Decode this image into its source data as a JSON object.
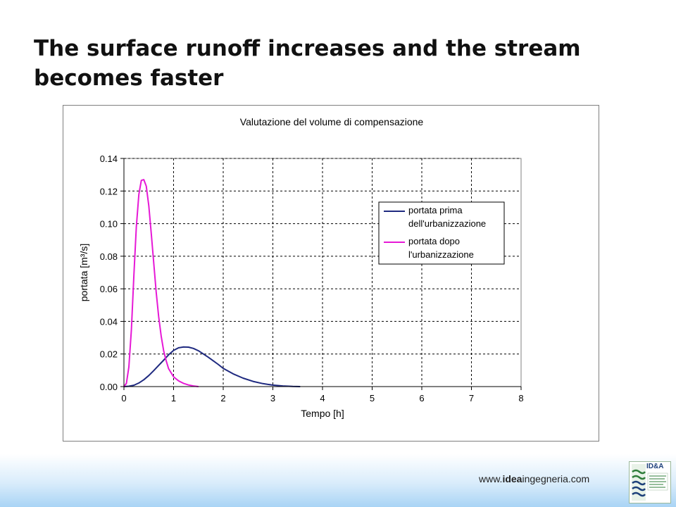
{
  "slide": {
    "title": "The surface runoff  increases and the stream becomes faster"
  },
  "footer": {
    "url_prefix": "www.",
    "url_bold": "idea",
    "url_suffix": "ingegneria.com",
    "logo_text": "ID&A"
  },
  "colors": {
    "before": "#1f2a80",
    "after": "#e619d6",
    "grid": "#000000"
  },
  "chart_data": {
    "type": "line",
    "title": "Valutazione del volume di compensazione",
    "xlabel": "Tempo [h]",
    "ylabel": "portata [m³/s]",
    "xlim": [
      0,
      8
    ],
    "ylim": [
      0,
      0.14
    ],
    "xticks": [
      "0",
      "1",
      "2",
      "3",
      "4",
      "5",
      "6",
      "7",
      "8"
    ],
    "yticks": [
      "0.00",
      "0.02",
      "0.04",
      "0.06",
      "0.08",
      "0.10",
      "0.12",
      "0.14"
    ],
    "grid": true,
    "legend_position": "right",
    "series": [
      {
        "name": "portata prima dell'urbanizzazione",
        "legend_lines": [
          "portata prima",
          "dell'urbanizzazione"
        ],
        "color": "#1f2a80",
        "x": [
          0.0,
          0.1,
          0.2,
          0.3,
          0.4,
          0.5,
          0.6,
          0.7,
          0.8,
          0.9,
          1.0,
          1.1,
          1.2,
          1.3,
          1.4,
          1.5,
          1.6,
          1.7,
          1.8,
          1.9,
          2.0,
          2.2,
          2.4,
          2.6,
          2.8,
          3.0,
          3.2,
          3.4,
          3.55
        ],
        "y": [
          0.0,
          0.0002,
          0.0008,
          0.0022,
          0.0042,
          0.0068,
          0.0098,
          0.013,
          0.0162,
          0.0195,
          0.0222,
          0.0238,
          0.0243,
          0.0242,
          0.0234,
          0.022,
          0.02,
          0.018,
          0.0158,
          0.0136,
          0.0112,
          0.0078,
          0.0052,
          0.0032,
          0.0018,
          0.0009,
          0.0004,
          0.0001,
          0.0
        ]
      },
      {
        "name": "portata dopo l'urbanizzazione",
        "legend_lines": [
          "portata dopo",
          "l'urbanizzazione"
        ],
        "color": "#e619d6",
        "x": [
          0.0,
          0.05,
          0.1,
          0.15,
          0.2,
          0.25,
          0.3,
          0.35,
          0.4,
          0.45,
          0.5,
          0.55,
          0.6,
          0.65,
          0.7,
          0.75,
          0.8,
          0.85,
          0.9,
          1.0,
          1.1,
          1.2,
          1.3,
          1.4,
          1.5
        ],
        "y": [
          0.0,
          0.002,
          0.012,
          0.035,
          0.068,
          0.098,
          0.118,
          0.1265,
          0.127,
          0.123,
          0.111,
          0.094,
          0.076,
          0.058,
          0.043,
          0.031,
          0.022,
          0.016,
          0.011,
          0.006,
          0.0035,
          0.002,
          0.001,
          0.0004,
          0.0
        ]
      }
    ]
  }
}
